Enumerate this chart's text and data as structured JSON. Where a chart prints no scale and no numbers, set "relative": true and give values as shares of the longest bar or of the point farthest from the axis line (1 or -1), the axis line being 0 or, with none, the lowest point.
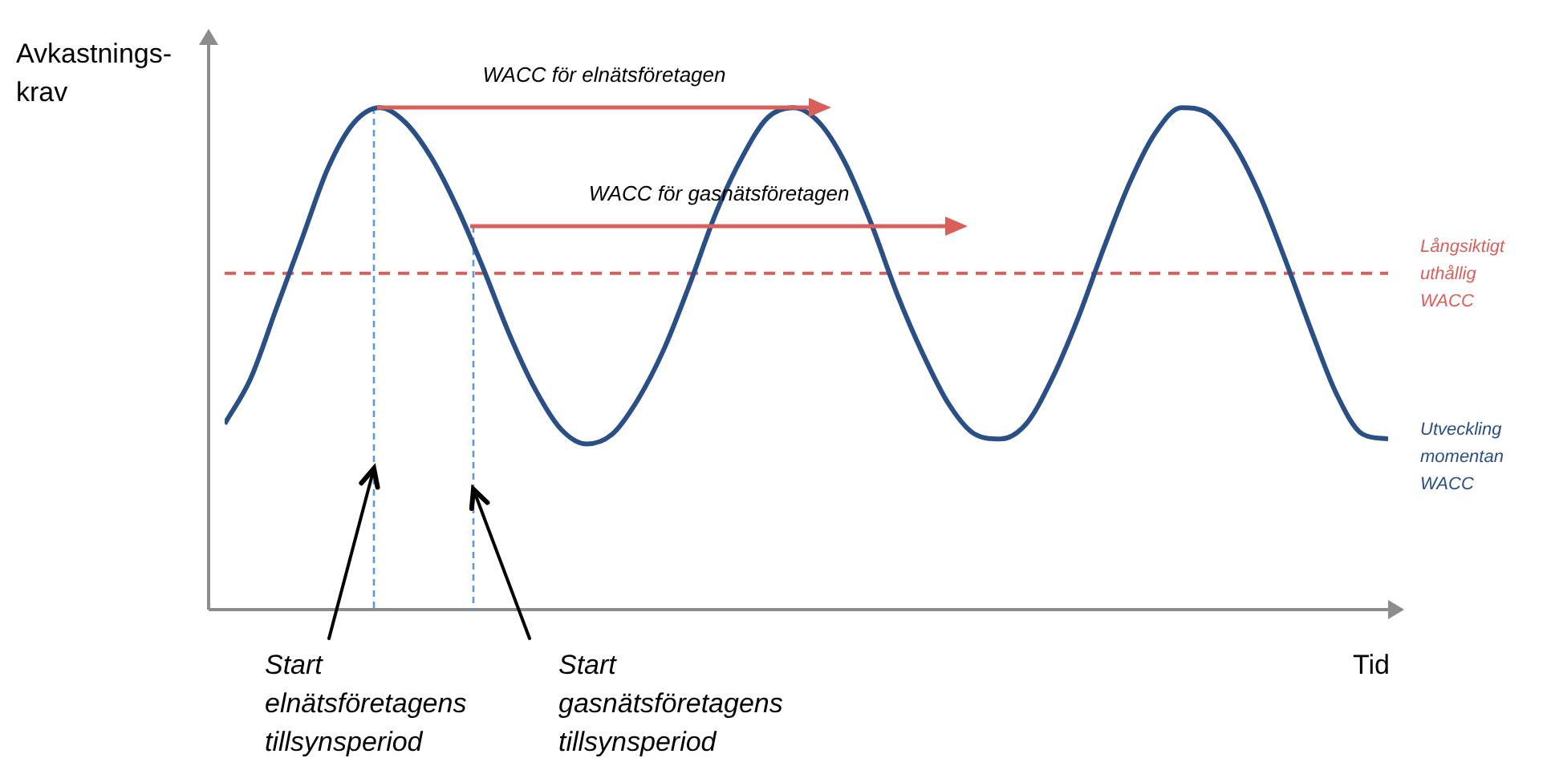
{
  "chart_data": {
    "type": "line",
    "relative": true,
    "ylabel": "Avkastnings-krav",
    "xlabel": "Tid",
    "tick_labels": false,
    "legend": false,
    "marker": "none",
    "categories": [
      null,
      null,
      null,
      null,
      null,
      null,
      null,
      null,
      null,
      null,
      null,
      null,
      null,
      null,
      null,
      null,
      null,
      null,
      null,
      null,
      null,
      null,
      null,
      null,
      null,
      null,
      null,
      null,
      null,
      null,
      null,
      null,
      null,
      null,
      null,
      null,
      null,
      null,
      null,
      null,
      null,
      null,
      null,
      null,
      null,
      null
    ],
    "series": [
      {
        "name": "Utveckling momentan WACC",
        "color": "#2a4f87",
        "line_style": "solid",
        "values": [
          0.37,
          0.46,
          0.6,
          0.74,
          0.88,
          0.97,
          1.0,
          0.97,
          0.9,
          0.8,
          0.68,
          0.55,
          0.44,
          0.36,
          0.33,
          0.35,
          0.42,
          0.52,
          0.65,
          0.79,
          0.9,
          0.98,
          1.0,
          0.97,
          0.89,
          0.77,
          0.63,
          0.51,
          0.41,
          0.35,
          0.34,
          0.37,
          0.46,
          0.58,
          0.72,
          0.85,
          0.95,
          1.0,
          0.99,
          0.93,
          0.83,
          0.7,
          0.56,
          0.43,
          0.35,
          0.34
        ]
      }
    ],
    "ref_lines": [
      {
        "axis": "y",
        "value": 0.67,
        "label": "Långsiktigt uthållig WACC",
        "color": "#d9605a",
        "line_style": "dashed"
      }
    ],
    "annotations": [
      "WACC för elnätsföretagen",
      "WACC för gasnätsföretagen",
      "Start elnätsföretagens tillsynsperiod",
      "Start gasnätsföretagens tillsynsperiod"
    ]
  }
}
